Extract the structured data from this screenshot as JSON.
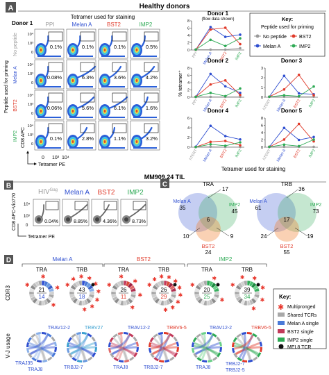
{
  "colors": {
    "ppi": "#9a9a9a",
    "melan": "#2f4fd0",
    "bst2": "#e03a2a",
    "imp2": "#2eaa55",
    "star": "#e8342a",
    "gridline": "#c8c8c8"
  },
  "panelA": {
    "letter": "A",
    "title": "Healthy donors",
    "donor": "Donor 1",
    "tetramer_header": "Tetramer used for staining",
    "cols": [
      "PPI",
      "Melan A",
      "BST2",
      "IMP2"
    ],
    "rows": [
      "No peptide",
      "Melan A",
      "BST2",
      "IMP2"
    ],
    "row_axis": "Peptide used for priming",
    "percentages": [
      [
        "0.1%",
        "0.1%",
        "0.1%",
        "0.5%"
      ],
      [
        "0.08%",
        "6.3%",
        "3.6%",
        "4.2%"
      ],
      [
        "0.06%",
        "5.6%",
        "6.1%",
        "1.6%"
      ],
      [
        "0.1%",
        "2.8%",
        "1.1%",
        "3.2%"
      ]
    ],
    "yaxis": "CD8 APC",
    "xaxis": "Tetramer PE",
    "ticks": [
      "0",
      "10³",
      "10⁴"
    ],
    "xlabel_bottom": "Tetramer used for staining",
    "ylabel_charts": "% tetramer⁺",
    "key": {
      "title": "Key:",
      "subtitle": "Peptide used for priming",
      "items": [
        "No peptide",
        "BST2",
        "Melan A",
        "IMP2"
      ]
    }
  },
  "chart_data": [
    {
      "type": "line",
      "title": "Donor 1",
      "subtitle": "(flow data shown)",
      "categories": [
        "PPI",
        "Melan A",
        "BST2",
        "IMP2"
      ],
      "ylim": [
        0,
        8
      ],
      "yticks": [
        "0",
        "2",
        "4",
        "6",
        "8"
      ],
      "series": [
        {
          "name": "No peptide",
          "values": [
            0.1,
            0.1,
            0.1,
            0.5
          ]
        },
        {
          "name": "Melan A",
          "values": [
            0.08,
            6.3,
            3.6,
            4.2
          ]
        },
        {
          "name": "BST2",
          "values": [
            0.06,
            5.6,
            6.1,
            1.6
          ]
        },
        {
          "name": "IMP2",
          "values": [
            0.1,
            2.8,
            1.1,
            3.2
          ]
        }
      ]
    },
    {
      "type": "line",
      "title": "Donor 2",
      "categories": [
        "PPI",
        "Melan A",
        "BST2",
        "IMP2"
      ],
      "ylim": [
        0,
        8
      ],
      "yticks": [
        "0",
        "2",
        "4",
        "6",
        "8"
      ],
      "series": [
        {
          "name": "No peptide",
          "values": [
            0.1,
            0.1,
            0.1,
            0.1
          ]
        },
        {
          "name": "Melan A",
          "values": [
            0.1,
            6.4,
            3.0,
            1.2
          ]
        },
        {
          "name": "BST2",
          "values": [
            0.1,
            3.5,
            4.6,
            0.6
          ]
        },
        {
          "name": "IMP2",
          "values": [
            0.1,
            1.2,
            0.3,
            2.4
          ]
        }
      ]
    },
    {
      "type": "line",
      "title": "Donor 3",
      "categories": [
        "hTERT",
        "Melan A",
        "BST2",
        "IMP2"
      ],
      "ylim": [
        0,
        3
      ],
      "yticks": [
        "0",
        "1",
        "2",
        "3"
      ],
      "series": [
        {
          "name": "No peptide",
          "values": [
            0.05,
            0.05,
            0.05,
            0.05
          ]
        },
        {
          "name": "Melan A",
          "values": [
            0.05,
            2.2,
            0.4,
            0.3
          ]
        },
        {
          "name": "BST2",
          "values": [
            0.05,
            0.8,
            2.3,
            0.2
          ]
        },
        {
          "name": "IMP2",
          "values": [
            0.05,
            0.2,
            0.1,
            1.1
          ]
        }
      ]
    },
    {
      "type": "line",
      "title": "Donor 4",
      "categories": [
        "hTERT",
        "Melan A",
        "BST2",
        "IMP2"
      ],
      "ylim": [
        0,
        6
      ],
      "yticks": [
        "0",
        "2",
        "4",
        "6"
      ],
      "series": [
        {
          "name": "No peptide",
          "values": [
            0.05,
            0.1,
            0.05,
            0.05
          ]
        },
        {
          "name": "Melan A",
          "values": [
            0.1,
            4.4,
            2.3,
            1.6
          ]
        },
        {
          "name": "BST2",
          "values": [
            0.05,
            1.1,
            1.3,
            0.4
          ]
        },
        {
          "name": "IMP2",
          "values": [
            0.05,
            0.6,
            0.3,
            1.0
          ]
        }
      ]
    },
    {
      "type": "line",
      "title": "Donor 5",
      "categories": [
        "hTERT",
        "Melan A",
        "BST2",
        "IMP2"
      ],
      "ylim": [
        0,
        8
      ],
      "yticks": [
        "0",
        "2",
        "4",
        "6",
        "8"
      ],
      "series": [
        {
          "name": "No peptide",
          "values": [
            0.1,
            0.1,
            0.1,
            0.1
          ]
        },
        {
          "name": "Melan A",
          "values": [
            0.1,
            5.3,
            2.0,
            2.8
          ]
        },
        {
          "name": "BST2",
          "values": [
            0.1,
            2.1,
            6.4,
            1.6
          ]
        },
        {
          "name": "IMP2",
          "values": [
            0.1,
            0.7,
            0.3,
            2.1
          ]
        }
      ]
    }
  ],
  "tilTitle": "MM909.24 TIL",
  "panelB": {
    "letter": "B",
    "cols": [
      "HIV",
      "Melan A",
      "BST2",
      "IMP2"
    ],
    "hiv_sup": "Gag",
    "percentages": [
      "0.04%",
      "8.85%",
      "4.36%",
      "8.73%"
    ],
    "yaxis": "CD8 APC-Vio770",
    "xaxis": "Tetramer PE"
  },
  "panelC": {
    "letter": "C",
    "tra": {
      "title": "TRA",
      "labels": {
        "melan": "Melan A",
        "imp2": "IMP2",
        "bst2": "BST2"
      },
      "counts": {
        "melan": "35",
        "imp2": "45",
        "bst2": "24",
        "ab": "17",
        "center": "6",
        "mb": "10",
        "ib": "9"
      }
    },
    "trb": {
      "title": "TRB",
      "labels": {
        "melan": "Melan A",
        "imp2": "IMP2",
        "bst2": "BST2"
      },
      "counts": {
        "melan": "61",
        "imp2": "73",
        "bst2": "55",
        "ab": "36",
        "center": "17",
        "mb": "24",
        "ib": "19"
      }
    }
  },
  "panelD": {
    "letter": "D",
    "groups": [
      "Melan A",
      "BST2",
      "IMP2"
    ],
    "sub": [
      "TRA",
      "TRB"
    ],
    "cdr3": "CDR3",
    "vj": "V-J usage",
    "donuts": [
      {
        "top": "21",
        "bottom": "14",
        "bc": "melan"
      },
      {
        "top": "43",
        "bottom": "18",
        "bc": "melan"
      },
      {
        "top": "26",
        "bottom": "11",
        "bc": "bst2"
      },
      {
        "top": "26",
        "bottom": "29",
        "bc": "bst2"
      },
      {
        "top": "20",
        "bottom": "25",
        "bc": "imp2"
      },
      {
        "top": "39",
        "bottom": "34",
        "bc": "imp2"
      }
    ],
    "genes": {
      "trav12_2": "TRAV12-2",
      "trbv27": "TRBV27",
      "traj35": "TRAJ35",
      "traj8": "TRAJ8",
      "trbj2_7": "TRBJ2-7",
      "trbv6_5": "TRBV6-5",
      "trbj2_5": "TRBJ2-5"
    },
    "key": {
      "title": "Key:",
      "items": [
        "Multipronged",
        "Shared TCRs",
        "Melan A single",
        "BST2 single",
        "IMP2 single",
        "MEL8 TCR"
      ]
    }
  }
}
